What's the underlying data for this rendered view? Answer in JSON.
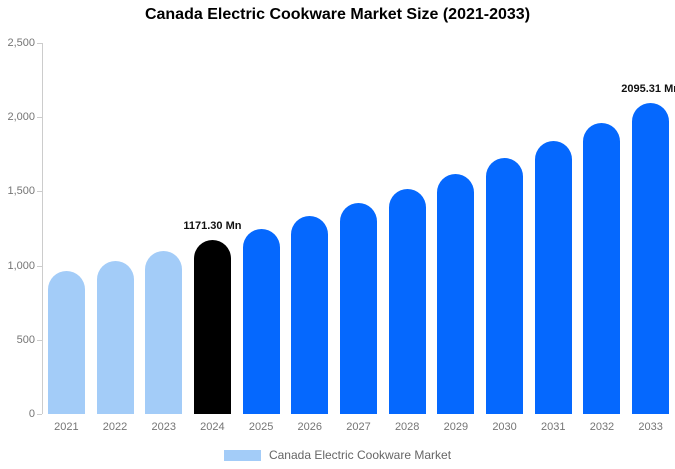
{
  "title": "Canada Electric Cookware Market Size (2021-2033)",
  "legend": {
    "label": "Canada Electric Cookware Market",
    "swatch_color": "#A3CCF8"
  },
  "colors": {
    "historical_bar": "#A3CCF8",
    "highlight_bar": "#000000",
    "forecast_bar": "#0568FE",
    "axis_line": "#cccccc",
    "tick_text": "#757575",
    "value_label_text": "#111111"
  },
  "chart_data": {
    "type": "bar",
    "title": "Canada Electric Cookware Market Size (2021-2033)",
    "xlabel": "",
    "ylabel": "",
    "categories": [
      "2021",
      "2022",
      "2023",
      "2024",
      "2025",
      "2026",
      "2027",
      "2028",
      "2029",
      "2030",
      "2031",
      "2032",
      "2033"
    ],
    "values": [
      963,
      1030,
      1098,
      1171.3,
      1249,
      1333,
      1421,
      1516,
      1617,
      1725,
      1840,
      1963,
      2095.31
    ],
    "bar_roles": [
      "historical",
      "historical",
      "historical",
      "highlight",
      "forecast",
      "forecast",
      "forecast",
      "forecast",
      "forecast",
      "forecast",
      "forecast",
      "forecast",
      "forecast"
    ],
    "point_labels": [
      null,
      null,
      null,
      "1171.30 Mn",
      null,
      null,
      null,
      null,
      null,
      null,
      null,
      null,
      "2095.31 Mn"
    ],
    "ylim": [
      0,
      2500
    ],
    "yticks": [
      0,
      500,
      1000,
      1500,
      2000,
      2500
    ],
    "ytick_labels": [
      "0",
      "500",
      "1,000",
      "1,500",
      "2,000",
      "2,500"
    ],
    "grid": false,
    "legend_position": "bottom",
    "series_name": "Canada Electric Cookware Market"
  }
}
